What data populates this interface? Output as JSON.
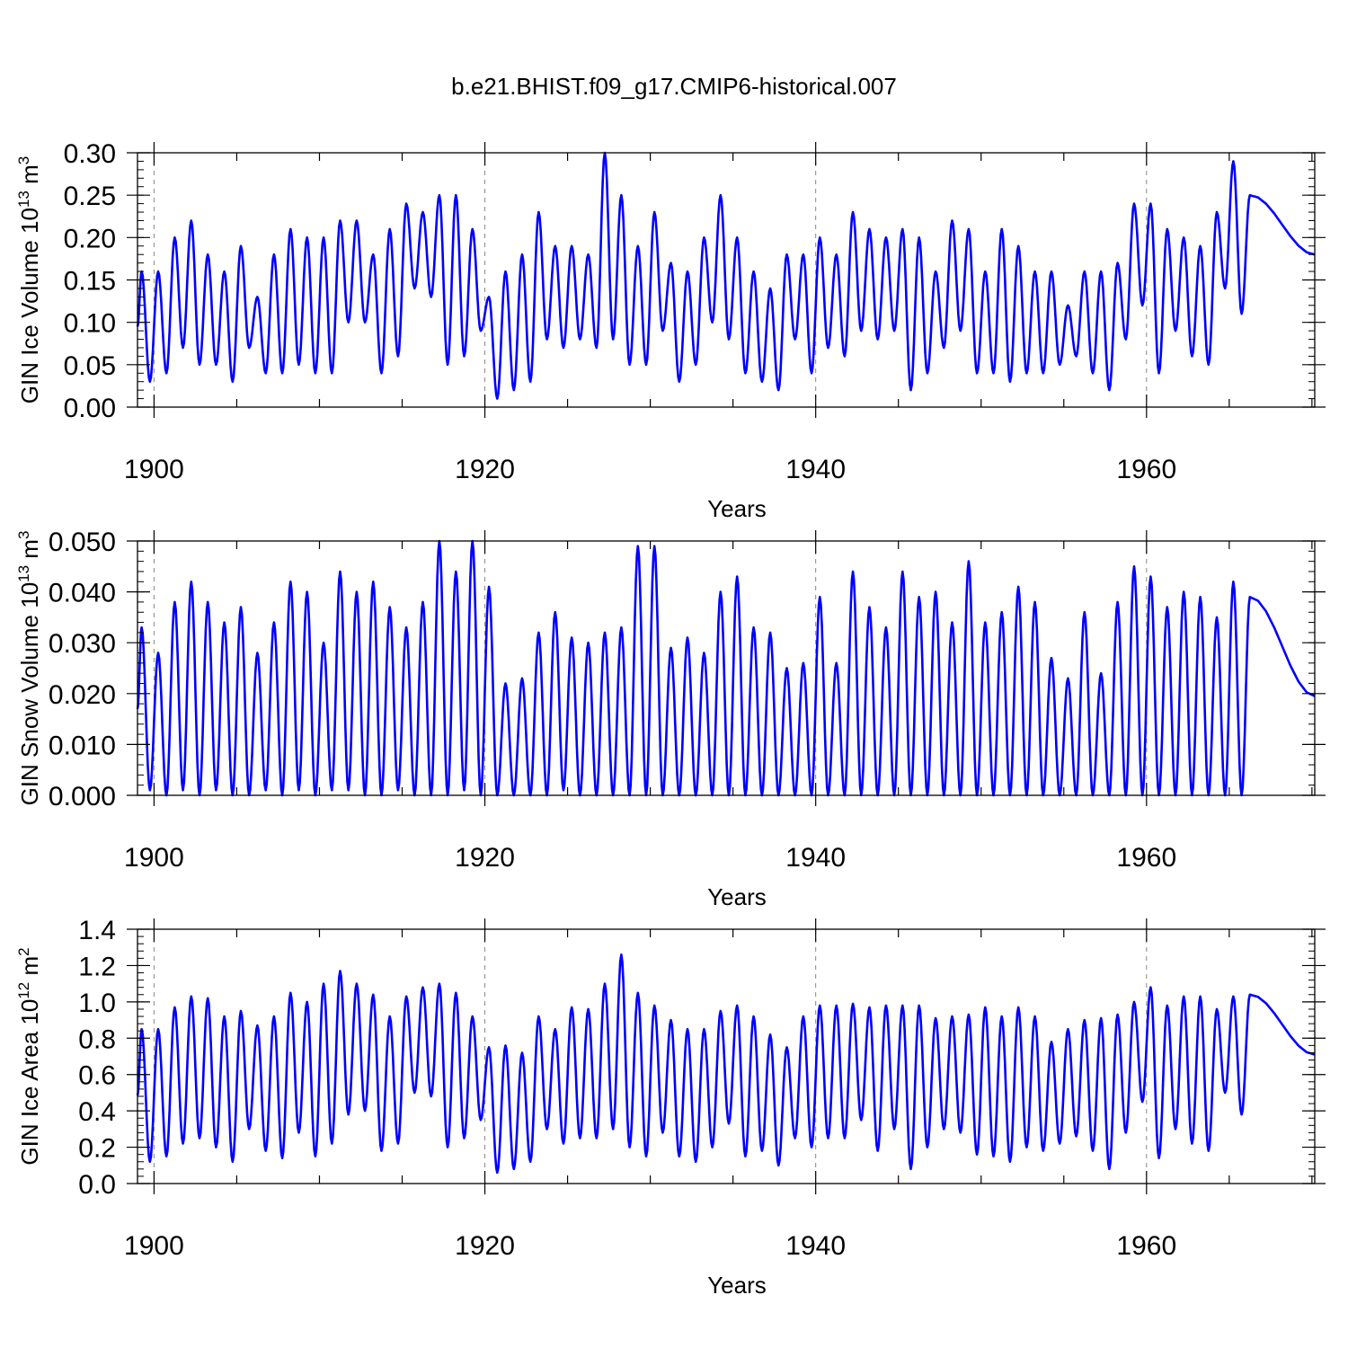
{
  "figure": {
    "title": "b.e21.BHIST.f09_g17.CMIP6-historical.007",
    "line_color": "#0000ff",
    "grid_color": "#888888"
  },
  "chart_data": [
    {
      "type": "line",
      "ylabel_text": "GIN Ice Volume 10",
      "ylabel_exp": "13",
      "ylabel_unit": " m",
      "ylabel_unit_exp": "3",
      "xlabel": "Years",
      "xlim": [
        1899.0,
        1970.17
      ],
      "ylim": [
        0.0,
        0.3
      ],
      "yticks": [
        0.0,
        0.05,
        0.1,
        0.15,
        0.2,
        0.25,
        0.3
      ],
      "ytick_labels": [
        "0.00",
        "0.05",
        "0.10",
        "0.15",
        "0.20",
        "0.25",
        "0.30"
      ],
      "xticks": [
        1900,
        1920,
        1940,
        1960
      ],
      "xtick_labels": [
        "1900",
        "1920",
        "1940",
        "1960"
      ],
      "series": [
        {
          "name": "GIN Ice Volume",
          "peaks": [
            0.16,
            0.16,
            0.2,
            0.22,
            0.18,
            0.16,
            0.19,
            0.13,
            0.18,
            0.21,
            0.2,
            0.2,
            0.22,
            0.22,
            0.18,
            0.21,
            0.24,
            0.23,
            0.25,
            0.25,
            0.21,
            0.13,
            0.16,
            0.18,
            0.23,
            0.19,
            0.19,
            0.18,
            0.3,
            0.25,
            0.19,
            0.23,
            0.17,
            0.16,
            0.2,
            0.25,
            0.2,
            0.16,
            0.14,
            0.18,
            0.18,
            0.2,
            0.18,
            0.23,
            0.21,
            0.2,
            0.21,
            0.2,
            0.16,
            0.22,
            0.21,
            0.16,
            0.21,
            0.19,
            0.16,
            0.16,
            0.12,
            0.16,
            0.16,
            0.17,
            0.24,
            0.24,
            0.21,
            0.2,
            0.19,
            0.23,
            0.29,
            0.25
          ],
          "troughs": [
            0.03,
            0.04,
            0.07,
            0.05,
            0.05,
            0.03,
            0.07,
            0.04,
            0.04,
            0.05,
            0.04,
            0.04,
            0.1,
            0.1,
            0.04,
            0.06,
            0.14,
            0.13,
            0.05,
            0.06,
            0.09,
            0.01,
            0.02,
            0.03,
            0.08,
            0.07,
            0.08,
            0.07,
            0.08,
            0.05,
            0.05,
            0.09,
            0.03,
            0.05,
            0.1,
            0.08,
            0.04,
            0.03,
            0.02,
            0.08,
            0.04,
            0.07,
            0.06,
            0.09,
            0.08,
            0.09,
            0.02,
            0.04,
            0.07,
            0.09,
            0.04,
            0.04,
            0.03,
            0.04,
            0.04,
            0.05,
            0.06,
            0.04,
            0.02,
            0.08,
            0.12,
            0.04,
            0.09,
            0.06,
            0.05,
            0.14,
            0.11
          ]
        }
      ]
    },
    {
      "type": "line",
      "ylabel_text": "GIN Snow Volume 10",
      "ylabel_exp": "13",
      "ylabel_unit": " m",
      "ylabel_unit_exp": "3",
      "xlabel": "Years",
      "xlim": [
        1899.0,
        1970.17
      ],
      "ylim": [
        0.0,
        0.05
      ],
      "yticks": [
        0.0,
        0.01,
        0.02,
        0.03,
        0.04,
        0.05
      ],
      "ytick_labels": [
        "0.000",
        "0.010",
        "0.020",
        "0.030",
        "0.040",
        "0.050"
      ],
      "xticks": [
        1900,
        1920,
        1940,
        1960
      ],
      "xtick_labels": [
        "1900",
        "1920",
        "1940",
        "1960"
      ],
      "series": [
        {
          "name": "GIN Snow Volume",
          "peaks": [
            0.033,
            0.028,
            0.038,
            0.042,
            0.038,
            0.034,
            0.037,
            0.028,
            0.034,
            0.042,
            0.04,
            0.03,
            0.044,
            0.04,
            0.042,
            0.037,
            0.033,
            0.038,
            0.05,
            0.044,
            0.05,
            0.041,
            0.022,
            0.023,
            0.032,
            0.036,
            0.031,
            0.03,
            0.032,
            0.033,
            0.049,
            0.049,
            0.029,
            0.031,
            0.028,
            0.04,
            0.043,
            0.033,
            0.032,
            0.025,
            0.026,
            0.039,
            0.026,
            0.044,
            0.037,
            0.033,
            0.044,
            0.039,
            0.04,
            0.034,
            0.046,
            0.034,
            0.036,
            0.041,
            0.038,
            0.027,
            0.023,
            0.036,
            0.024,
            0.038,
            0.045,
            0.043,
            0.037,
            0.04,
            0.039,
            0.035,
            0.042,
            0.039
          ],
          "troughs": [
            0.001,
            0.0,
            0.001,
            0.0,
            0.001,
            0.0,
            0.0,
            0.001,
            0.0,
            0.001,
            0.0,
            0.001,
            0.001,
            0.0,
            0.0,
            0.001,
            0.0,
            0.0,
            0.0,
            0.001,
            0.0,
            0.0,
            0.0,
            0.0,
            0.0,
            0.001,
            0.0,
            0.0,
            0.0,
            0.0,
            0.0,
            0.0,
            0.0,
            0.0,
            0.0,
            0.0,
            0.0,
            0.0,
            0.0,
            0.0,
            0.0,
            0.0,
            0.0,
            0.0,
            0.0,
            0.0,
            0.0,
            0.0,
            0.0,
            0.0,
            0.0,
            0.0,
            0.0,
            0.0,
            0.0,
            0.0,
            0.0,
            0.0,
            0.0,
            0.0,
            0.0,
            0.0,
            0.0,
            0.0,
            0.0,
            0.0,
            0.0
          ]
        }
      ]
    },
    {
      "type": "line",
      "ylabel_text": "GIN Ice Area 10",
      "ylabel_exp": "12",
      "ylabel_unit": " m",
      "ylabel_unit_exp": "2",
      "xlabel": "Years",
      "xlim": [
        1899.0,
        1970.17
      ],
      "ylim": [
        0.0,
        1.4
      ],
      "yticks": [
        0.0,
        0.2,
        0.4,
        0.6,
        0.8,
        1.0,
        1.2,
        1.4
      ],
      "ytick_labels": [
        "0.0",
        "0.2",
        "0.4",
        "0.6",
        "0.8",
        "1.0",
        "1.2",
        "1.4"
      ],
      "xticks": [
        1900,
        1920,
        1940,
        1960
      ],
      "xtick_labels": [
        "1900",
        "1920",
        "1940",
        "1960"
      ],
      "series": [
        {
          "name": "GIN Ice Area",
          "peaks": [
            0.85,
            0.85,
            0.97,
            1.03,
            1.02,
            0.92,
            0.95,
            0.87,
            0.92,
            1.05,
            1.0,
            1.1,
            1.17,
            1.1,
            1.04,
            0.92,
            1.03,
            1.08,
            1.1,
            1.05,
            0.92,
            0.75,
            0.76,
            0.72,
            0.92,
            0.85,
            0.97,
            0.96,
            1.1,
            1.26,
            1.05,
            0.98,
            0.9,
            0.85,
            0.85,
            0.95,
            0.98,
            0.92,
            0.82,
            0.75,
            0.92,
            0.98,
            0.98,
            0.99,
            0.97,
            0.98,
            0.98,
            0.98,
            0.91,
            0.92,
            0.93,
            0.97,
            0.92,
            0.97,
            0.92,
            0.78,
            0.85,
            0.9,
            0.91,
            0.93,
            1.0,
            1.08,
            0.98,
            1.03,
            1.03,
            0.96,
            1.03,
            1.04
          ],
          "troughs": [
            0.12,
            0.15,
            0.22,
            0.25,
            0.2,
            0.12,
            0.3,
            0.18,
            0.14,
            0.28,
            0.15,
            0.22,
            0.38,
            0.4,
            0.18,
            0.22,
            0.5,
            0.48,
            0.2,
            0.25,
            0.35,
            0.06,
            0.08,
            0.12,
            0.3,
            0.22,
            0.25,
            0.25,
            0.3,
            0.2,
            0.15,
            0.28,
            0.15,
            0.12,
            0.2,
            0.33,
            0.15,
            0.18,
            0.1,
            0.25,
            0.2,
            0.25,
            0.25,
            0.35,
            0.18,
            0.3,
            0.08,
            0.2,
            0.3,
            0.28,
            0.16,
            0.15,
            0.12,
            0.2,
            0.18,
            0.22,
            0.26,
            0.18,
            0.08,
            0.28,
            0.45,
            0.14,
            0.3,
            0.22,
            0.18,
            0.5,
            0.38
          ]
        }
      ]
    }
  ]
}
